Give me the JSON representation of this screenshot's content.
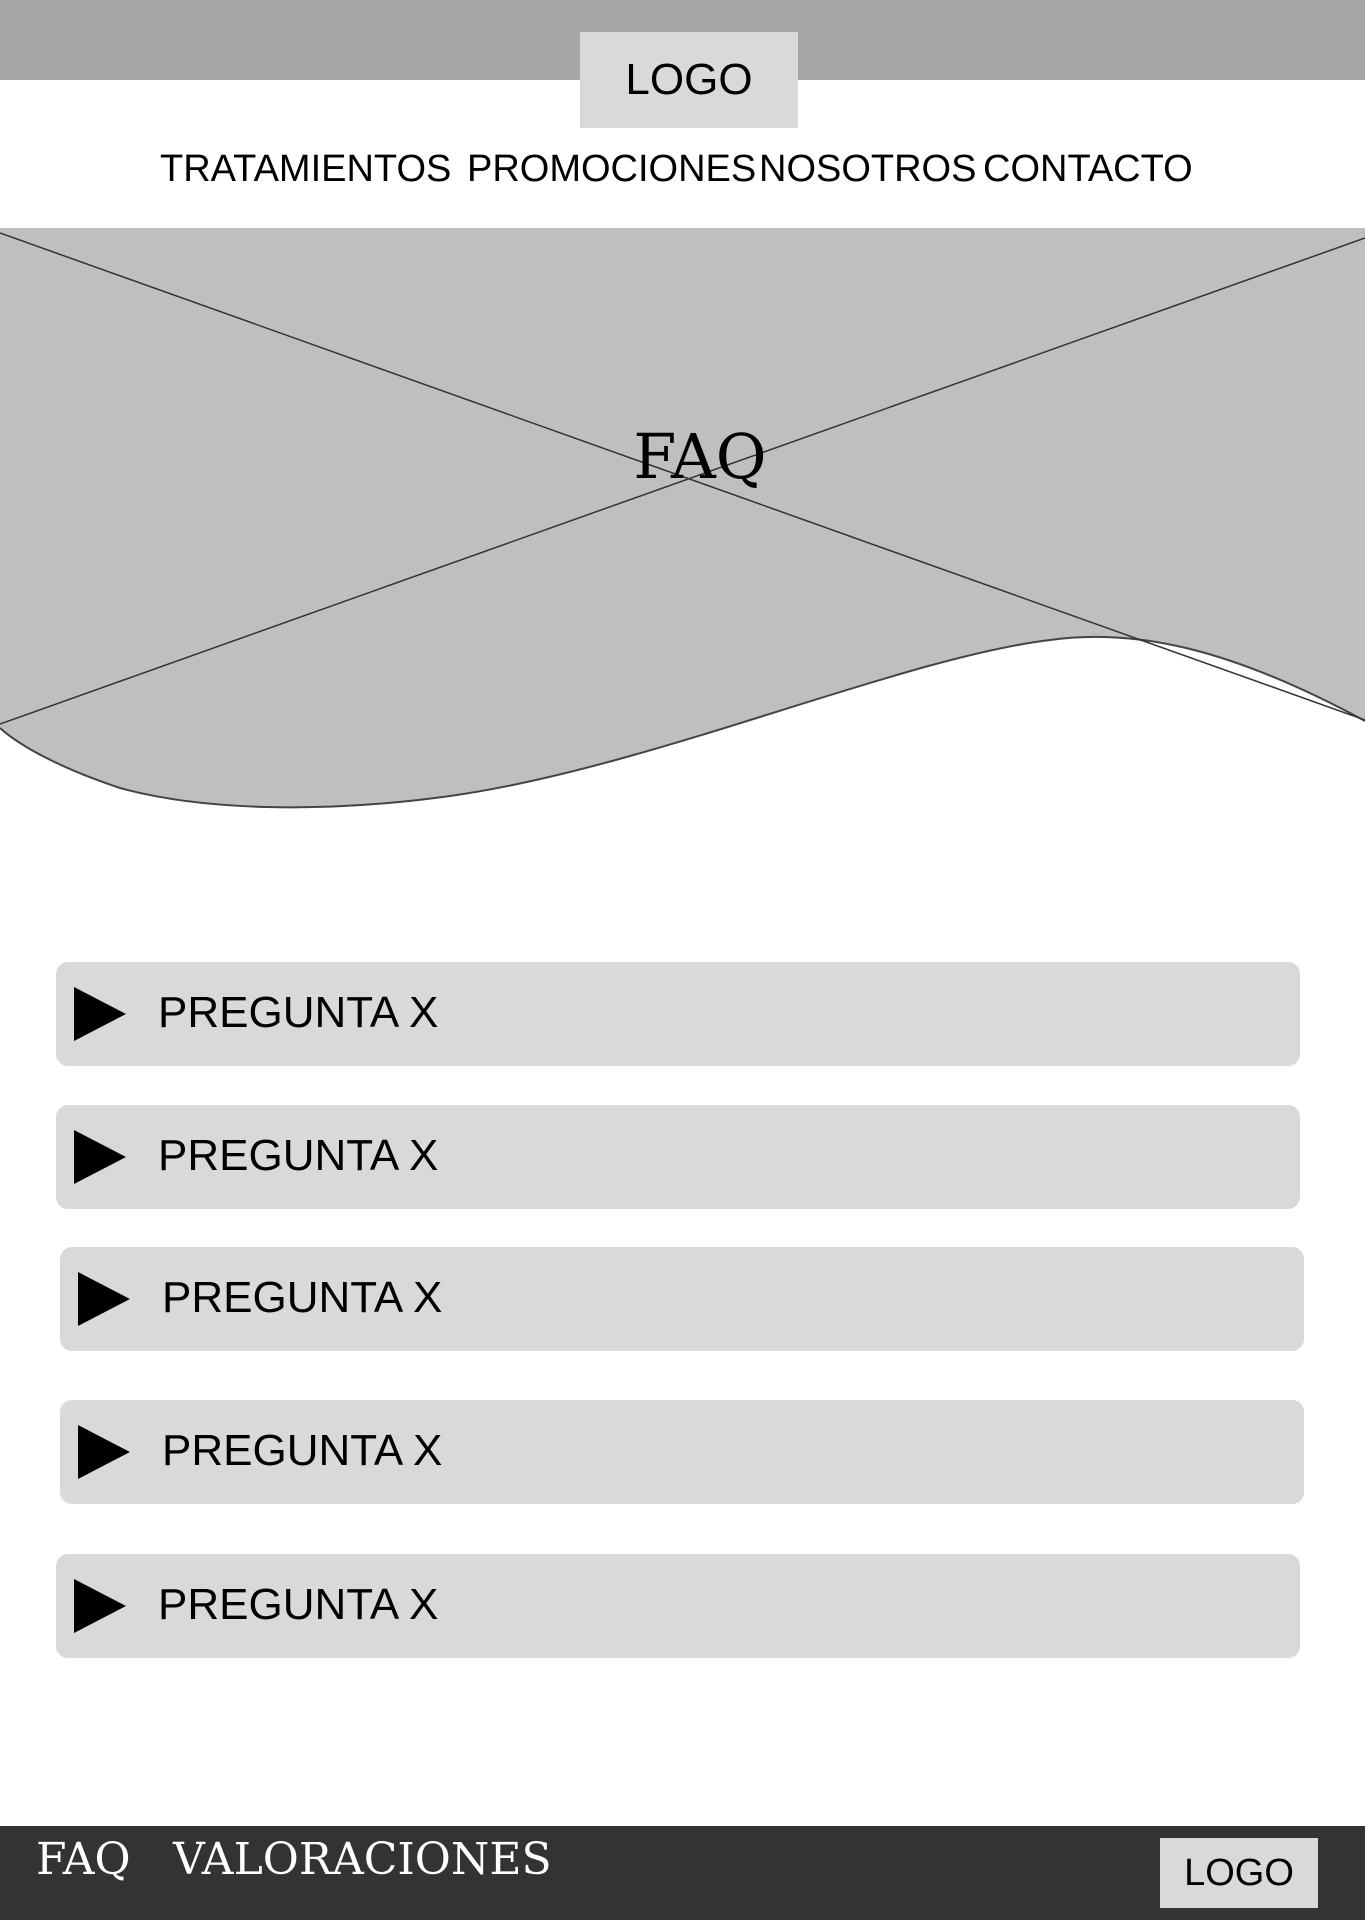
{
  "header": {
    "logo_text": "LOGO",
    "nav": [
      "TRATAMIENTOS",
      "PROMOCIONES",
      "NOSOTROS",
      "CONTACTO"
    ]
  },
  "hero": {
    "title": "FAQ"
  },
  "faq": {
    "items": [
      {
        "label": "PREGUNTA X"
      },
      {
        "label": "PREGUNTA X"
      },
      {
        "label": "PREGUNTA X"
      },
      {
        "label": "PREGUNTA X"
      },
      {
        "label": "PREGUNTA X"
      }
    ]
  },
  "footer": {
    "links": [
      "FAQ",
      "VALORACIONES"
    ],
    "logo_text": "LOGO"
  },
  "colors": {
    "top_bar": "#a7a6a4",
    "hero_placeholder": "#bfbfbf",
    "item_background": "#d9d9d9",
    "footer": "#333234"
  }
}
